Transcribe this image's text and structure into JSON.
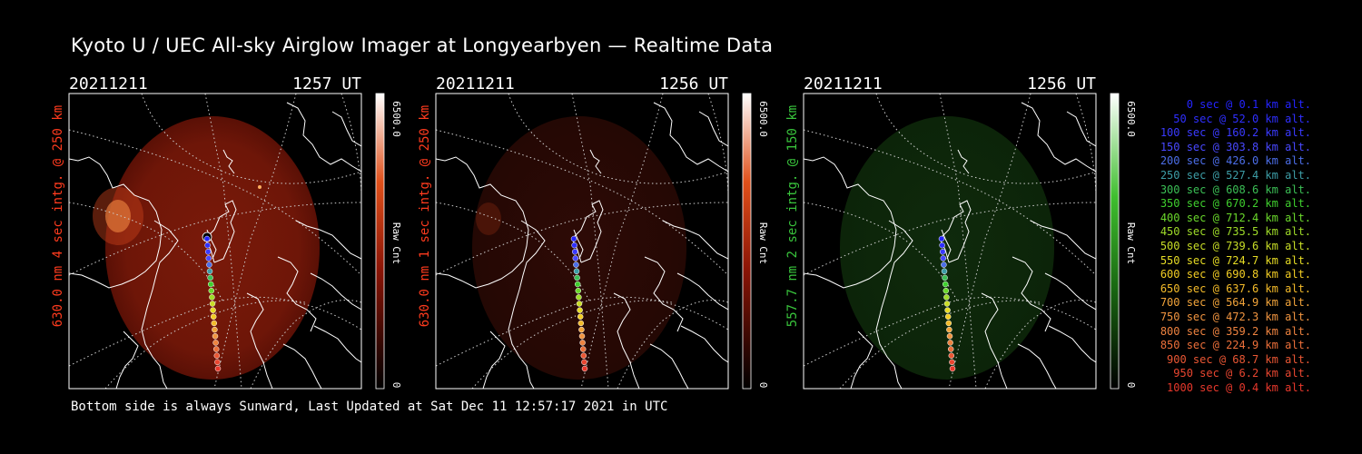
{
  "title": "Kyoto U / UEC All-sky Airglow Imager at Longyearbyen — Realtime Data",
  "footer": "Bottom side is always Sunward, Last Updated at Sat Dec 11 12:57:17 2021 in UTC",
  "colors": {
    "red_label": "#ff3b1e",
    "green_label": "#39c43c",
    "map_lines": "#ffffff"
  },
  "chart_data": [
    {
      "type": "heatmap",
      "date": "20211211",
      "time": "1257 UT",
      "ylabel": "630.0 nm 4 sec intg. @ 250 km",
      "colorbar_max": "6500.0",
      "colorbar_min": "0",
      "colorbar_label": "Raw Cnt",
      "colormap": "red",
      "label_color": "#ff3b1e"
    },
    {
      "type": "heatmap",
      "date": "20211211",
      "time": "1256 UT",
      "ylabel": "630.0 nm 1 sec intg. @ 250 km",
      "colorbar_max": "6500.0",
      "colorbar_min": "0",
      "colorbar_label": "Raw Cnt",
      "colormap": "red",
      "label_color": "#ff3b1e"
    },
    {
      "type": "heatmap",
      "date": "20211211",
      "time": "1256 UT",
      "ylabel": "557.7 nm 2 sec intg. @ 150 km",
      "colorbar_max": "6500.0",
      "colorbar_min": "0",
      "colorbar_label": "Raw Cnt",
      "colormap": "green",
      "label_color": "#39c43c"
    }
  ],
  "trajectory": [
    {
      "time": "0 sec",
      "alt": "0.1 km alt.",
      "color": "#2424ff"
    },
    {
      "time": "50 sec",
      "alt": "52.0 km alt.",
      "color": "#2f2fff"
    },
    {
      "time": "100 sec",
      "alt": "160.2 km alt.",
      "color": "#3a3aff"
    },
    {
      "time": "150 sec",
      "alt": "303.8 km alt.",
      "color": "#4848ff"
    },
    {
      "time": "200 sec",
      "alt": "426.0 km alt.",
      "color": "#4c6ee8"
    },
    {
      "time": "250 sec",
      "alt": "527.4 km alt.",
      "color": "#3d9da6"
    },
    {
      "time": "300 sec",
      "alt": "608.6 km alt.",
      "color": "#3bbf55"
    },
    {
      "time": "350 sec",
      "alt": "670.2 km alt.",
      "color": "#3fcf2e"
    },
    {
      "time": "400 sec",
      "alt": "712.4 km alt.",
      "color": "#6ad82b"
    },
    {
      "time": "450 sec",
      "alt": "735.5 km alt.",
      "color": "#9fdc29"
    },
    {
      "time": "500 sec",
      "alt": "739.6 km alt.",
      "color": "#c9de27"
    },
    {
      "time": "550 sec",
      "alt": "724.7 km alt.",
      "color": "#e6dc25"
    },
    {
      "time": "600 sec",
      "alt": "690.8 km alt.",
      "color": "#f2cd24"
    },
    {
      "time": "650 sec",
      "alt": "637.6 km alt.",
      "color": "#f4bb2a"
    },
    {
      "time": "700 sec",
      "alt": "564.9 km alt.",
      "color": "#f2a43a"
    },
    {
      "time": "750 sec",
      "alt": "472.3 km alt.",
      "color": "#f09440"
    },
    {
      "time": "800 sec",
      "alt": "359.2 km alt.",
      "color": "#ee8340"
    },
    {
      "time": "850 sec",
      "alt": "224.9 km alt.",
      "color": "#ec6f3a"
    },
    {
      "time": "900 sec",
      "alt": "68.7 km alt.",
      "color": "#ea5734"
    },
    {
      "time": "950 sec",
      "alt": "6.2 km alt.",
      "color": "#e84630"
    },
    {
      "time": "1000 sec",
      "alt": "0.4 km alt.",
      "color": "#e8382c"
    }
  ]
}
